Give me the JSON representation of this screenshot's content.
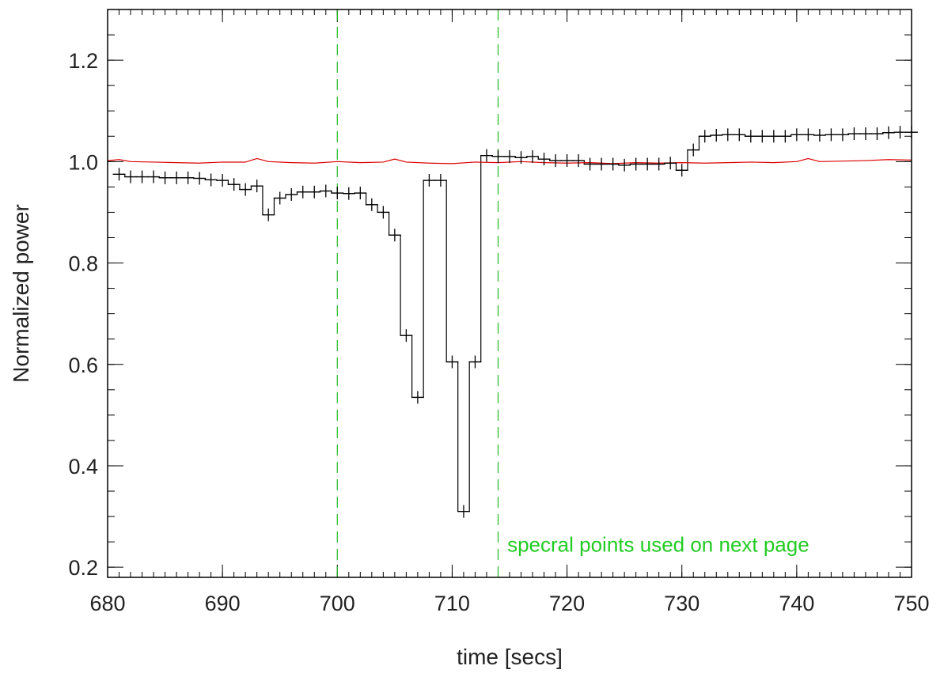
{
  "chart_data": {
    "type": "line",
    "title": "",
    "xlabel": "time [secs]",
    "ylabel": "Normalized power",
    "xlim": [
      680,
      750
    ],
    "ylim": [
      0.18,
      1.3
    ],
    "xticks": [
      680,
      690,
      700,
      710,
      720,
      730,
      740,
      750
    ],
    "xtick_labels": [
      "680",
      "690",
      "700",
      "710",
      "720",
      "730",
      "740",
      "750"
    ],
    "yticks": [
      0.2,
      0.4,
      0.6,
      0.8,
      1.0,
      1.2
    ],
    "ytick_labels": [
      "0.2",
      "0.4",
      "0.6",
      "0.8",
      "1.0",
      "1.2"
    ],
    "x_minor_step": 1,
    "y_minor_step": 0.05,
    "grid": false,
    "series": [
      {
        "color": "#000000",
        "marker": "plus",
        "step": 1,
        "x": [
          681,
          682,
          683,
          684,
          685,
          686,
          687,
          688,
          689,
          690,
          691,
          692,
          693,
          694,
          695,
          696,
          697,
          698,
          699,
          700,
          701,
          702,
          703,
          704,
          705,
          706,
          707,
          708,
          709,
          710,
          711,
          712,
          713,
          714,
          715,
          716,
          717,
          718,
          719,
          720,
          721,
          722,
          723,
          724,
          725,
          726,
          727,
          728,
          729,
          730,
          731,
          732,
          733,
          734,
          735,
          736,
          737,
          738,
          739,
          740,
          741,
          742,
          743,
          744,
          745,
          746,
          747,
          748,
          749,
          750
        ],
        "y": [
          0.975,
          0.97,
          0.97,
          0.97,
          0.968,
          0.968,
          0.968,
          0.967,
          0.964,
          0.963,
          0.955,
          0.945,
          0.952,
          0.895,
          0.928,
          0.935,
          0.94,
          0.94,
          0.942,
          0.938,
          0.937,
          0.938,
          0.915,
          0.9,
          0.855,
          0.657,
          0.535,
          0.963,
          0.963,
          0.605,
          0.31,
          0.605,
          1.012,
          1.01,
          1.01,
          1.008,
          1.01,
          1.005,
          1.002,
          1.002,
          1.002,
          0.995,
          0.995,
          0.995,
          0.993,
          0.995,
          0.995,
          0.995,
          0.997,
          0.983,
          1.023,
          1.05,
          1.052,
          1.053,
          1.053,
          1.05,
          1.05,
          1.05,
          1.05,
          1.053,
          1.053,
          1.052,
          1.053,
          1.053,
          1.055,
          1.055,
          1.055,
          1.057,
          1.058,
          1.058
        ]
      },
      {
        "color": "#dd0000",
        "marker": "none",
        "step": 0,
        "x": [
          680,
          681,
          682,
          684,
          686,
          688,
          690,
          692,
          693,
          694,
          696,
          698,
          700,
          702,
          704,
          705,
          706,
          708,
          710,
          712,
          714,
          716,
          718,
          720,
          722,
          724,
          726,
          728,
          730,
          732,
          734,
          736,
          738,
          740,
          741,
          742,
          744,
          746,
          748,
          750
        ],
        "y": [
          1.002,
          1.004,
          1.0,
          0.999,
          0.998,
          0.997,
          0.999,
          0.999,
          1.006,
          1.0,
          0.998,
          0.997,
          1.0,
          0.998,
          0.999,
          1.005,
          0.999,
          0.997,
          0.996,
          0.999,
          0.998,
          1.0,
          0.998,
          0.997,
          0.998,
          0.996,
          0.998,
          0.997,
          0.998,
          0.997,
          0.998,
          0.999,
          0.998,
          1.0,
          1.006,
          1.0,
          1.001,
          1.002,
          1.004,
          1.003
        ]
      }
    ],
    "vlines": [
      {
        "x": 700,
        "color": "#22bb22",
        "style": "dashed"
      },
      {
        "x": 714,
        "color": "#22bb22",
        "style": "dashed"
      }
    ],
    "annotations": [
      {
        "text": "specral points used on next page",
        "x": 714.8,
        "y": 0.245,
        "color": "#22cc22"
      }
    ]
  }
}
